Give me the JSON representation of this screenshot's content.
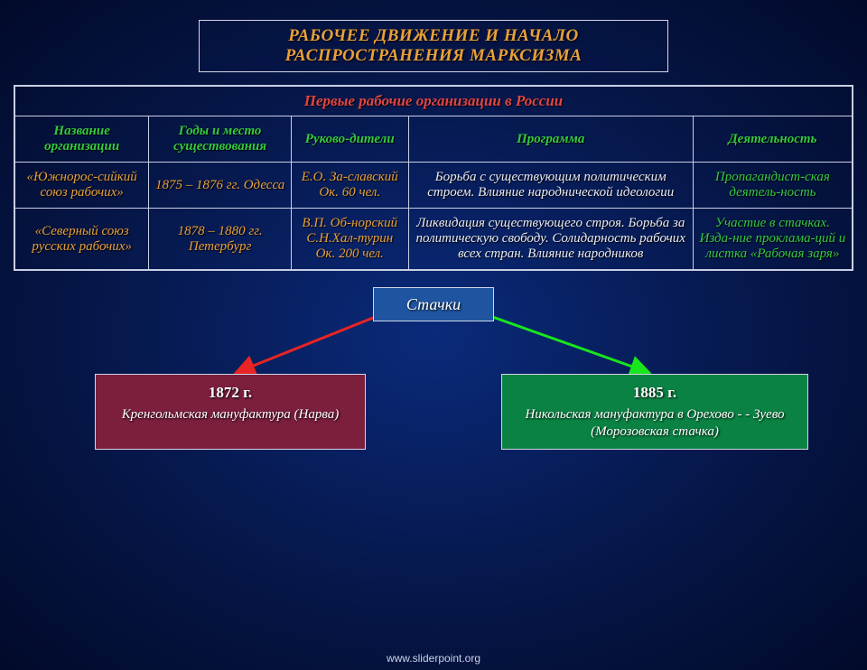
{
  "title": {
    "line1": "РАБОЧЕЕ ДВИЖЕНИЕ И НАЧАЛО",
    "line2": "РАСПРОСТРАНЕНИЯ МАРКСИЗМА"
  },
  "table": {
    "caption": "Первые рабочие организации в России",
    "headers": [
      "Название организации",
      "Годы и место существования",
      "Руково-дители",
      "Программа",
      "Деятельность"
    ],
    "col_widths": [
      "16%",
      "17%",
      "14%",
      "34%",
      "19%"
    ],
    "rows": [
      {
        "name": "«Южнорос-сийкий союз рабочих»",
        "years": "1875 – 1876 гг. Одесса",
        "leaders": "Е.О. За-славский Ок. 60 чел.",
        "program": "Борьба с существующим политическим строем. Влияние народнической идеологии",
        "activity": "Пропагандист-ская деятель-ность"
      },
      {
        "name": "«Северный союз русских рабочих»",
        "years": "1878 – 1880 гг. Петербург",
        "leaders": "В.П. Об-норский С.Н.Хал-турин\nОк. 200 чел.",
        "program": "Ликвидация существующего строя. Борьба за политическую свободу. Солидарность рабочих всех стран. Влияние народников",
        "activity": "Участие в стачках. Изда-ние проклама-ций и листка «Рабочая заря»"
      }
    ],
    "col_colors": [
      "#e8a03a",
      "#e8a03a",
      "#e8a03a",
      "#e9ecf5",
      "#35c93f"
    ]
  },
  "flow": {
    "root": "Стачки",
    "left": {
      "year": "1872 г.",
      "desc": "Кренгольмская мануфактура (Нарва)",
      "fill": "#7b1f3d"
    },
    "right": {
      "year": "1885 г.",
      "desc": "Никольская мануфактура в Орехово - - Зуево (Морозовская стачка)",
      "fill": "#0a8243"
    },
    "arrow_red": "#e82424",
    "arrow_green": "#18e61c"
  },
  "footer": "www.sliderpoint.org"
}
